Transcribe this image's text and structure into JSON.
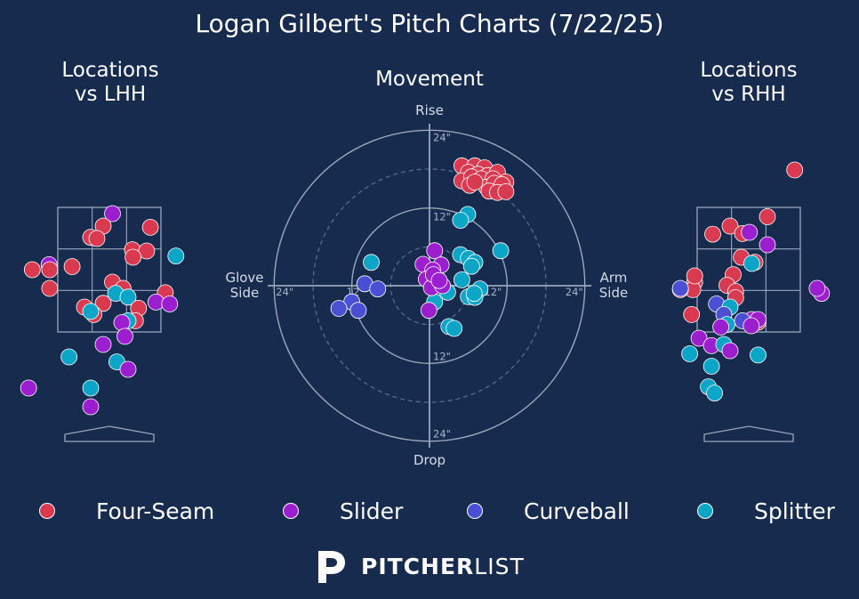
{
  "title": "Logan Gilbert's Pitch Charts (7/22/25)",
  "panels": {
    "lhh_title": "Locations\nvs LHH",
    "movement_title": "Movement",
    "rhh_title": "Locations\nvs RHH"
  },
  "movement_labels": {
    "top": "Rise",
    "bottom": "Drop",
    "left": "Glove\nSide",
    "right": "Arm\nSide",
    "ring_labels": [
      "24\"",
      "12\"",
      "12\"",
      "24\"",
      "12\"",
      "24\"",
      "12\"",
      "24\""
    ]
  },
  "legend": [
    {
      "name": "Four-Seam",
      "color": "#d93a50"
    },
    {
      "name": "Slider",
      "color": "#9b1fcf"
    },
    {
      "name": "Curveball",
      "color": "#4b4fd4"
    },
    {
      "name": "Splitter",
      "color": "#0ba5c8"
    }
  ],
  "brand": {
    "bold": "PITCHER",
    "light": "LIST",
    "icon": "pitcherlist-p-logo"
  },
  "chart_data": [
    {
      "type": "scatter",
      "name": "Locations vs LHH",
      "units": "plate location (ft), strike zone x:[-0.83,0.83] z:[1.5,3.5]",
      "points": [
        {
          "p": "Slider",
          "x": 0.05,
          "z": 3.4
        },
        {
          "p": "Four-Seam",
          "x": -0.1,
          "z": 3.2
        },
        {
          "p": "Four-Seam",
          "x": 0.66,
          "z": 3.18
        },
        {
          "p": "Four-Seam",
          "x": -0.3,
          "z": 3.02
        },
        {
          "p": "Four-Seam",
          "x": -0.2,
          "z": 3.0
        },
        {
          "p": "Four-Seam",
          "x": 0.37,
          "z": 2.82
        },
        {
          "p": "Four-Seam",
          "x": 0.6,
          "z": 2.8
        },
        {
          "p": "Four-Seam",
          "x": 0.38,
          "z": 2.7
        },
        {
          "p": "Splitter",
          "x": 1.07,
          "z": 2.72
        },
        {
          "p": "Slider",
          "x": -0.97,
          "z": 2.58
        },
        {
          "p": "Four-Seam",
          "x": -1.24,
          "z": 2.5
        },
        {
          "p": "Four-Seam",
          "x": -0.96,
          "z": 2.5
        },
        {
          "p": "Four-Seam",
          "x": -0.6,
          "z": 2.55
        },
        {
          "p": "Four-Seam",
          "x": 0.05,
          "z": 2.3
        },
        {
          "p": "Four-Seam",
          "x": 0.22,
          "z": 2.2
        },
        {
          "p": "Four-Seam",
          "x": -0.96,
          "z": 2.2
        },
        {
          "p": "Four-Seam",
          "x": 0.9,
          "z": 2.13
        },
        {
          "p": "Splitter",
          "x": 0.1,
          "z": 2.12
        },
        {
          "p": "Splitter",
          "x": 0.3,
          "z": 2.06
        },
        {
          "p": "Slider",
          "x": 0.75,
          "z": 1.98
        },
        {
          "p": "Slider",
          "x": 0.97,
          "z": 1.95
        },
        {
          "p": "Four-Seam",
          "x": -0.1,
          "z": 1.96
        },
        {
          "p": "Four-Seam",
          "x": -0.4,
          "z": 1.9
        },
        {
          "p": "Four-Seam",
          "x": 0.47,
          "z": 1.88
        },
        {
          "p": "Four-Seam",
          "x": -0.25,
          "z": 1.78
        },
        {
          "p": "Splitter",
          "x": -0.3,
          "z": 1.83
        },
        {
          "p": "Four-Seam",
          "x": 0.42,
          "z": 1.68
        },
        {
          "p": "Splitter",
          "x": 0.3,
          "z": 1.68
        },
        {
          "p": "Slider",
          "x": 0.2,
          "z": 1.65
        },
        {
          "p": "Slider",
          "x": 0.25,
          "z": 1.43
        },
        {
          "p": "Slider",
          "x": -0.1,
          "z": 1.3
        },
        {
          "p": "Splitter",
          "x": -0.65,
          "z": 1.1
        },
        {
          "p": "Splitter",
          "x": 0.12,
          "z": 1.02
        },
        {
          "p": "Slider",
          "x": 0.3,
          "z": 0.9
        },
        {
          "p": "Slider",
          "x": -1.3,
          "z": 0.6
        },
        {
          "p": "Splitter",
          "x": -0.3,
          "z": 0.6
        },
        {
          "p": "Slider",
          "x": -0.3,
          "z": 0.3
        }
      ]
    },
    {
      "type": "scatter",
      "name": "Movement",
      "units": "inches, x: glove side (-) / arm side (+), y: drop (-) / rise (+)",
      "points": [
        {
          "p": "Four-Seam",
          "x": 5,
          "y": 18.5
        },
        {
          "p": "Four-Seam",
          "x": 7,
          "y": 18.5
        },
        {
          "p": "Four-Seam",
          "x": 8.5,
          "y": 18.2
        },
        {
          "p": "Four-Seam",
          "x": 6,
          "y": 17.5
        },
        {
          "p": "Four-Seam",
          "x": 7.5,
          "y": 17.2
        },
        {
          "p": "Four-Seam",
          "x": 9,
          "y": 17
        },
        {
          "p": "Four-Seam",
          "x": 10.5,
          "y": 17.5
        },
        {
          "p": "Four-Seam",
          "x": 5,
          "y": 16.2
        },
        {
          "p": "Four-Seam",
          "x": 6.5,
          "y": 16.8
        },
        {
          "p": "Four-Seam",
          "x": 8,
          "y": 16.5
        },
        {
          "p": "Four-Seam",
          "x": 9.8,
          "y": 16.5
        },
        {
          "p": "Four-Seam",
          "x": 11.8,
          "y": 16
        },
        {
          "p": "Four-Seam",
          "x": 6.2,
          "y": 15.5
        },
        {
          "p": "Four-Seam",
          "x": 8.8,
          "y": 15.2
        },
        {
          "p": "Four-Seam",
          "x": 10,
          "y": 15.8
        },
        {
          "p": "Four-Seam",
          "x": 11.2,
          "y": 15.6
        },
        {
          "p": "Four-Seam",
          "x": 9.2,
          "y": 14.6
        },
        {
          "p": "Four-Seam",
          "x": 10.5,
          "y": 14.4
        },
        {
          "p": "Four-Seam",
          "x": 11.8,
          "y": 14.5
        },
        {
          "p": "Four-Seam",
          "x": 7,
          "y": 16
        },
        {
          "p": "Splitter",
          "x": 5.9,
          "y": 11
        },
        {
          "p": "Splitter",
          "x": 4.8,
          "y": 10.1
        },
        {
          "p": "Splitter",
          "x": 11,
          "y": 5.4
        },
        {
          "p": "Splitter",
          "x": 4.8,
          "y": 4.8
        },
        {
          "p": "Splitter",
          "x": 6,
          "y": 4.2
        },
        {
          "p": "Splitter",
          "x": 7,
          "y": 3.6
        },
        {
          "p": "Splitter",
          "x": 6.5,
          "y": 3
        },
        {
          "p": "Splitter",
          "x": 5,
          "y": 0.9
        },
        {
          "p": "Splitter",
          "x": 7.8,
          "y": -0.5
        },
        {
          "p": "Splitter",
          "x": 2.8,
          "y": -1
        },
        {
          "p": "Splitter",
          "x": 6,
          "y": -1.7
        },
        {
          "p": "Splitter",
          "x": 7,
          "y": -1.8
        },
        {
          "p": "Splitter",
          "x": 6.9,
          "y": -1.2
        },
        {
          "p": "Splitter",
          "x": 0.8,
          "y": -2.5
        },
        {
          "p": "Splitter",
          "x": 3,
          "y": -6.3
        },
        {
          "p": "Splitter",
          "x": 3.8,
          "y": -6.6
        },
        {
          "p": "Splitter",
          "x": -9,
          "y": 3.6
        },
        {
          "p": "Slider",
          "x": 0.8,
          "y": 5.4
        },
        {
          "p": "Slider",
          "x": -1,
          "y": 3.3
        },
        {
          "p": "Slider",
          "x": 1.8,
          "y": 3.2
        },
        {
          "p": "Slider",
          "x": 0.5,
          "y": 2.4
        },
        {
          "p": "Slider",
          "x": -0.5,
          "y": 1
        },
        {
          "p": "Slider",
          "x": 1,
          "y": 0.5
        },
        {
          "p": "Slider",
          "x": 0.3,
          "y": -0.3
        },
        {
          "p": "Slider",
          "x": 2,
          "y": 0
        },
        {
          "p": "Slider",
          "x": -0.1,
          "y": -3.8
        },
        {
          "p": "Slider",
          "x": 0.6,
          "y": 1.7
        },
        {
          "p": "Slider",
          "x": 1.5,
          "y": 0.8
        },
        {
          "p": "Curveball",
          "x": -10,
          "y": 0.3
        },
        {
          "p": "Curveball",
          "x": -8,
          "y": -0.5
        },
        {
          "p": "Curveball",
          "x": -12,
          "y": -2.5
        },
        {
          "p": "Curveball",
          "x": -14,
          "y": -3.5
        },
        {
          "p": "Curveball",
          "x": -11,
          "y": -3.8
        }
      ]
    },
    {
      "type": "scatter",
      "name": "Locations vs RHH",
      "units": "plate location (ft), strike zone x:[-0.83,0.83] z:[1.5,3.5]",
      "points": [
        {
          "p": "Four-Seam",
          "x": 0.74,
          "z": 4.1
        },
        {
          "p": "Four-Seam",
          "x": -0.3,
          "z": 3.2
        },
        {
          "p": "Four-Seam",
          "x": -0.1,
          "z": 3.08
        },
        {
          "p": "Four-Seam",
          "x": 0.3,
          "z": 3.35
        },
        {
          "p": "Four-Seam",
          "x": -0.58,
          "z": 3.07
        },
        {
          "p": "Slider",
          "x": 0.01,
          "z": 3.1
        },
        {
          "p": "Slider",
          "x": 0.3,
          "z": 2.9
        },
        {
          "p": "Four-Seam",
          "x": -0.12,
          "z": 2.7
        },
        {
          "p": "Four-Seam",
          "x": 0.1,
          "z": 2.62
        },
        {
          "p": "Splitter",
          "x": 0.05,
          "z": 2.6
        },
        {
          "p": "Four-Seam",
          "x": -0.25,
          "z": 2.42
        },
        {
          "p": "Four-Seam",
          "x": -0.87,
          "z": 2.3
        },
        {
          "p": "Four-Seam",
          "x": -0.35,
          "z": 2.25
        },
        {
          "p": "Four-Seam",
          "x": -0.9,
          "z": 2.18
        },
        {
          "p": "Four-Seam",
          "x": -1.1,
          "z": 2.18
        },
        {
          "p": "Four-Seam",
          "x": -0.21,
          "z": 2.15
        },
        {
          "p": "Slider",
          "x": 1.17,
          "z": 2.12
        },
        {
          "p": "Curveball",
          "x": -1.1,
          "z": 2.2
        },
        {
          "p": "Four-Seam",
          "x": -0.87,
          "z": 2.4
        },
        {
          "p": "Four-Seam",
          "x": -0.21,
          "z": 2.05
        },
        {
          "p": "Curveball",
          "x": -0.52,
          "z": 1.95
        },
        {
          "p": "Splitter",
          "x": -0.3,
          "z": 1.9
        },
        {
          "p": "Four-Seam",
          "x": -0.92,
          "z": 1.78
        },
        {
          "p": "Curveball",
          "x": -0.4,
          "z": 1.78
        },
        {
          "p": "Slider",
          "x": 0.05,
          "z": 1.7
        },
        {
          "p": "Four-Seam",
          "x": 0.15,
          "z": 1.66
        },
        {
          "p": "Curveball",
          "x": -0.1,
          "z": 1.68
        },
        {
          "p": "Splitter",
          "x": -0.35,
          "z": 1.62
        },
        {
          "p": "Slider",
          "x": 0.15,
          "z": 1.7
        },
        {
          "p": "Slider",
          "x": 0.04,
          "z": 1.6
        },
        {
          "p": "Slider",
          "x": -0.45,
          "z": 1.58
        },
        {
          "p": "Slider",
          "x": -0.8,
          "z": 1.4
        },
        {
          "p": "Slider",
          "x": -0.6,
          "z": 1.28
        },
        {
          "p": "Splitter",
          "x": -0.4,
          "z": 1.3
        },
        {
          "p": "Slider",
          "x": -0.3,
          "z": 1.2
        },
        {
          "p": "Splitter",
          "x": -0.95,
          "z": 1.15
        },
        {
          "p": "Splitter",
          "x": 0.15,
          "z": 1.13
        },
        {
          "p": "Splitter",
          "x": -0.6,
          "z": 0.95
        },
        {
          "p": "Splitter",
          "x": -0.65,
          "z": 0.62
        },
        {
          "p": "Splitter",
          "x": -0.55,
          "z": 0.52
        },
        {
          "p": "Slider",
          "x": 1.1,
          "z": 2.2
        }
      ]
    }
  ]
}
